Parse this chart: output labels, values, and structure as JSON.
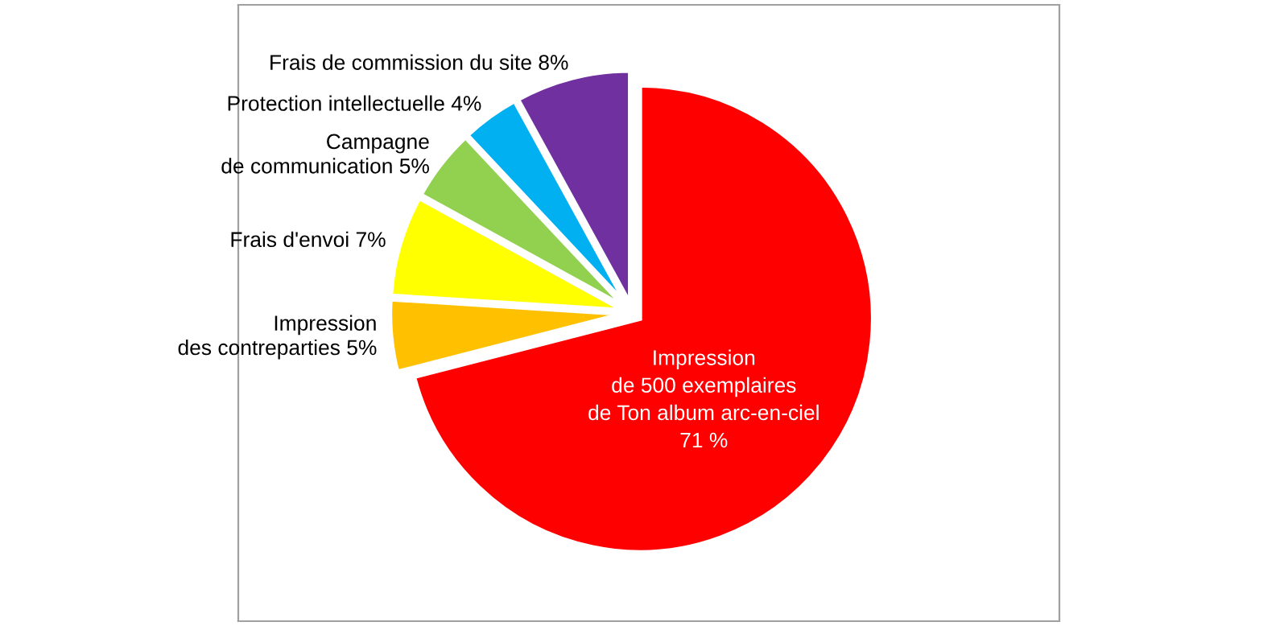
{
  "chart_data": {
    "type": "pie",
    "categories": [
      "Impression\nde 500 exemplaires\nde Ton album arc-en-ciel",
      "Impression\ndes contreparties",
      "Frais d'envoi",
      "Campagne\nde communication",
      "Protection intellectuelle",
      "Frais de commission du site"
    ],
    "values": [
      71,
      5,
      7,
      5,
      4,
      8
    ],
    "value_labels": [
      "71 %",
      "5%",
      "7%",
      "5%",
      "4%",
      "8%"
    ],
    "colors": [
      "#ff0000",
      "#ffc000",
      "#ffff00",
      "#92d050",
      "#00b0f0",
      "#7030a0"
    ],
    "legend": false
  }
}
